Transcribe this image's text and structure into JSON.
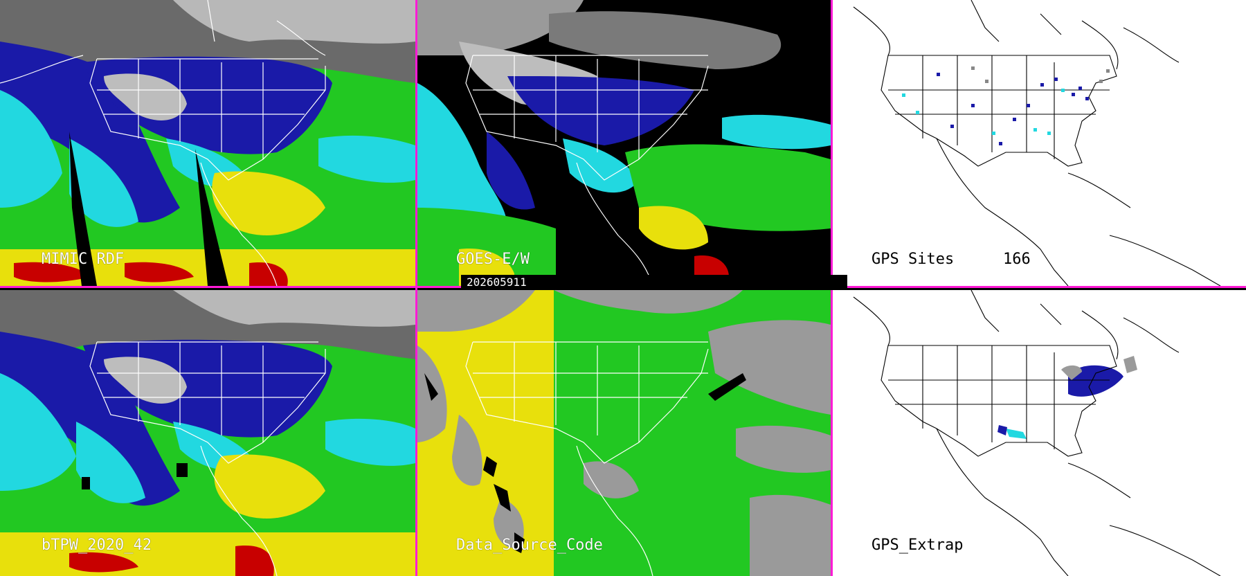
{
  "panels": [
    {
      "id": "mimic-rdf",
      "label": "MIMIC RDF"
    },
    {
      "id": "goes-ew",
      "label": "GOES-E/W"
    },
    {
      "id": "gps-sites",
      "label": "GPS Sites",
      "count": "166"
    },
    {
      "id": "btpw",
      "label": "bTPW_2020_42"
    },
    {
      "id": "data-source-code",
      "label": "Data_Source_Code"
    },
    {
      "id": "gps-extrap",
      "label": "GPS_Extrap"
    }
  ],
  "timestamp": "202605911",
  "colors": {
    "divider": "#ff1bd6",
    "navy": "#1a1aa8",
    "cyan": "#22d8e0",
    "green": "#22c822",
    "yellow": "#e8e00c",
    "red": "#c80000",
    "gray": "#9a9a9a",
    "black": "#000000",
    "white": "#ffffff"
  }
}
